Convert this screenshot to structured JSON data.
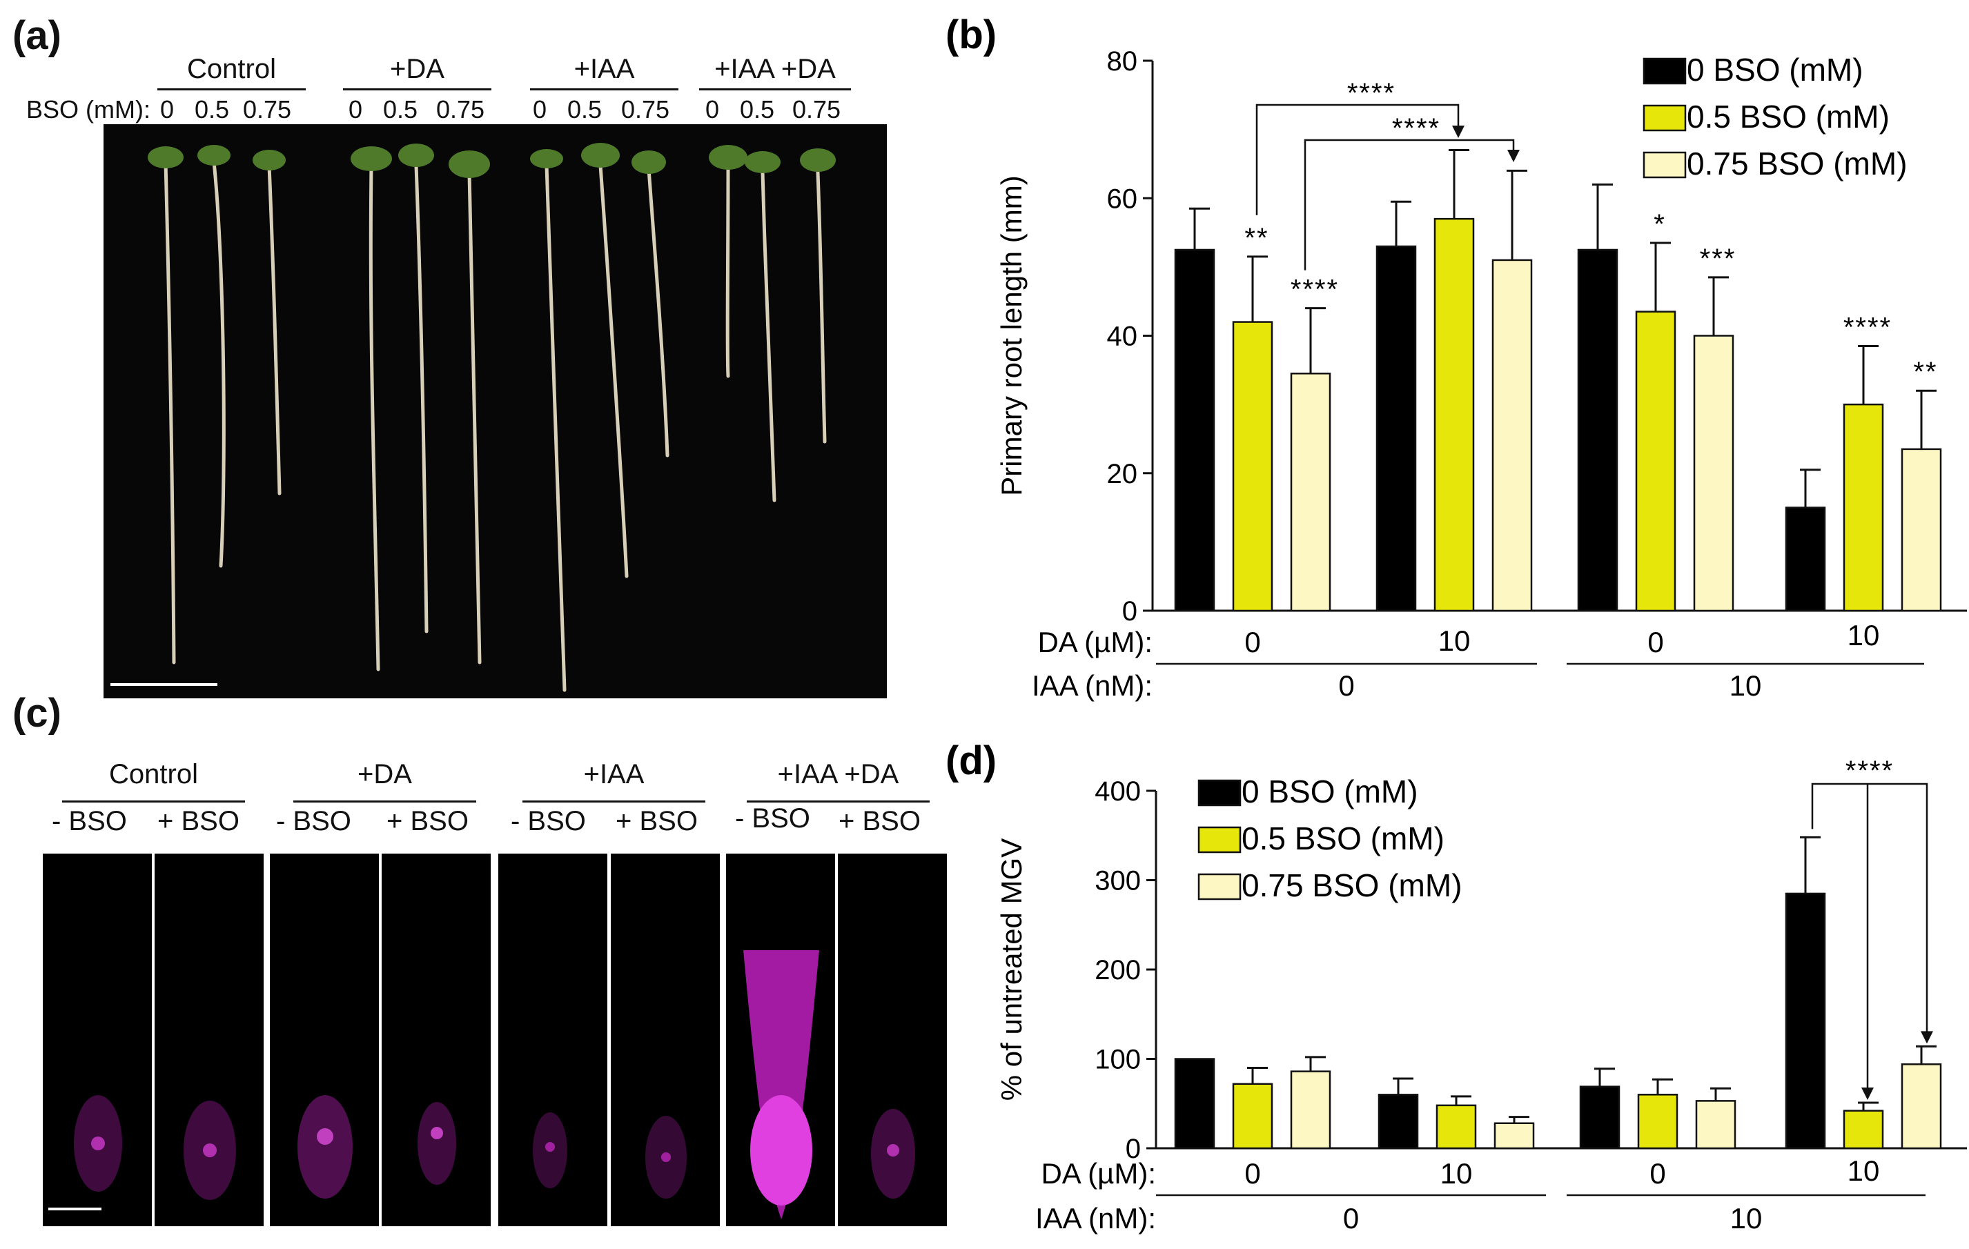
{
  "panel_a": {
    "label": "(a)",
    "bso_axis_label": "BSO (mM):",
    "groups": [
      {
        "name": "Control",
        "concs": [
          "0",
          "0.5",
          "0.75"
        ]
      },
      {
        "name": "+DA",
        "concs": [
          "0",
          "0.5",
          "0.75"
        ]
      },
      {
        "name": "+IAA",
        "concs": [
          "0",
          "0.5",
          "0.75"
        ]
      },
      {
        "name": "+IAA +DA",
        "concs": [
          "0",
          "0.5",
          "0.75"
        ]
      }
    ]
  },
  "panel_c": {
    "label": "(c)",
    "groups": [
      {
        "name": "Control",
        "minus": "- BSO",
        "plus": "+ BSO"
      },
      {
        "name": "+DA",
        "minus": "- BSO",
        "plus": "+ BSO"
      },
      {
        "name": "+IAA",
        "minus": "- BSO",
        "plus": "+ BSO"
      },
      {
        "name": "+IAA +DA",
        "minus": "- BSO",
        "plus": "+ BSO"
      }
    ]
  },
  "colors": {
    "bso0": "#000000",
    "bso05": "#e6e60a",
    "bso075": "#fdf7c4"
  },
  "chart_data": [
    {
      "type": "bar",
      "panel": "(b)",
      "title": "",
      "ylabel": "Primary root length (mm)",
      "ylim": [
        0,
        80
      ],
      "yticks": [
        0,
        20,
        40,
        60,
        80
      ],
      "x_rows": [
        {
          "label": "DA (µM):",
          "values": [
            "0",
            "10",
            "0",
            "10"
          ]
        },
        {
          "label": "IAA (nM):",
          "values": [
            "0",
            "10"
          ]
        }
      ],
      "categories": [
        "DA 0 / IAA 0",
        "DA 10 / IAA 0",
        "DA 0 / IAA 10",
        "DA 10 / IAA 10"
      ],
      "series": [
        {
          "name": "0 BSO (mM)",
          "values": [
            52.5,
            53,
            52.5,
            15
          ],
          "errors": [
            6,
            6.5,
            9.5,
            5.5
          ],
          "stars": [
            "",
            "",
            "",
            ""
          ]
        },
        {
          "name": "0.5 BSO (mM)",
          "values": [
            42,
            57,
            43.5,
            30
          ],
          "errors": [
            9.5,
            10,
            10,
            8.5
          ],
          "stars": [
            "**",
            "",
            "*",
            "****"
          ]
        },
        {
          "name": "0.75 BSO (mM)",
          "values": [
            34.5,
            51,
            40,
            23.5
          ],
          "errors": [
            9.5,
            13,
            8.5,
            8.5
          ],
          "stars": [
            "****",
            "",
            "***",
            "**"
          ]
        }
      ],
      "annotations": [
        "****",
        "****"
      ],
      "legend": "top-right"
    },
    {
      "type": "bar",
      "panel": "(d)",
      "title": "",
      "ylabel": "% of untreated MGV",
      "ylim": [
        0,
        400
      ],
      "yticks": [
        0,
        100,
        200,
        300,
        400
      ],
      "x_rows": [
        {
          "label": "DA (µM):",
          "values": [
            "0",
            "10",
            "0",
            "10"
          ]
        },
        {
          "label": "IAA (nM):",
          "values": [
            "0",
            "10"
          ]
        }
      ],
      "categories": [
        "DA 0 / IAA 0",
        "DA 10 / IAA 0",
        "DA 0 / IAA 10",
        "DA 10 / IAA 10"
      ],
      "series": [
        {
          "name": "0 BSO (mM)",
          "values": [
            100,
            60,
            69,
            285
          ],
          "errors": [
            0,
            18,
            20,
            63
          ],
          "stars": [
            "",
            "",
            "",
            ""
          ]
        },
        {
          "name": "0.5 BSO (mM)",
          "values": [
            72,
            48,
            60,
            42
          ],
          "errors": [
            18,
            10,
            17,
            9
          ],
          "stars": [
            "",
            "",
            "",
            ""
          ]
        },
        {
          "name": "0.75 BSO (mM)",
          "values": [
            86,
            28,
            53,
            94
          ],
          "errors": [
            16,
            7,
            14,
            20
          ],
          "stars": [
            "",
            "",
            "",
            ""
          ]
        }
      ],
      "annotations": [
        "****"
      ],
      "legend": "top-left"
    }
  ]
}
